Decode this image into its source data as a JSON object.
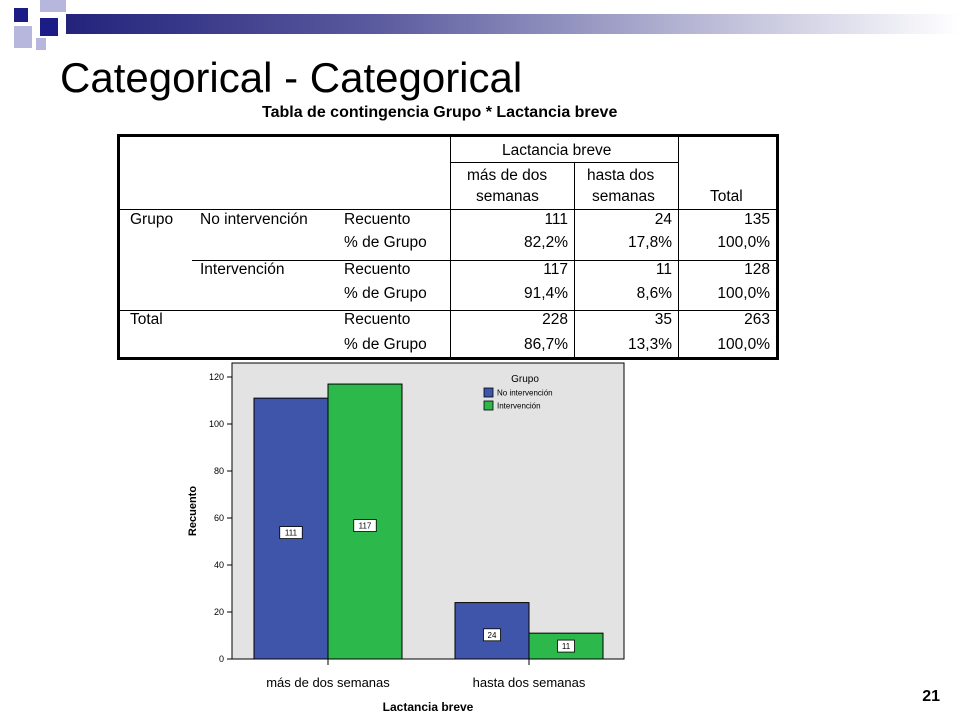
{
  "slide": {
    "title": "Categorical - Categorical",
    "page_number": "21"
  },
  "table": {
    "title": "Tabla de contingencia Grupo * Lactancia breve",
    "col_group_header": "Lactancia breve",
    "col_headers": [
      [
        "más de dos",
        "semanas"
      ],
      [
        "hasta dos",
        "semanas"
      ],
      [
        "Total"
      ]
    ],
    "rows": [
      {
        "group": "Grupo",
        "sub": "No intervención",
        "stat": "Recuento",
        "values": [
          "111",
          "24",
          "135"
        ]
      },
      {
        "group": "",
        "sub": "",
        "stat": "% de Grupo",
        "values": [
          "82,2%",
          "17,8%",
          "100,0%"
        ]
      },
      {
        "group": "",
        "sub": "Intervención",
        "stat": "Recuento",
        "values": [
          "117",
          "11",
          "128"
        ]
      },
      {
        "group": "",
        "sub": "",
        "stat": "% de Grupo",
        "values": [
          "91,4%",
          "8,6%",
          "100,0%"
        ]
      },
      {
        "group": "Total",
        "sub": "",
        "stat": "Recuento",
        "values": [
          "228",
          "35",
          "263"
        ]
      },
      {
        "group": "",
        "sub": "",
        "stat": "% de Grupo",
        "values": [
          "86,7%",
          "13,3%",
          "100,0%"
        ]
      }
    ]
  },
  "chart_data": {
    "type": "bar",
    "categories": [
      "más de dos semanas",
      "hasta dos semanas"
    ],
    "series": [
      {
        "name": "No intervención",
        "values": [
          111,
          24
        ],
        "color": "#3f55a9"
      },
      {
        "name": "Intervención",
        "values": [
          117,
          11
        ],
        "color": "#2db84b"
      }
    ],
    "xlabel": "Lactancia breve",
    "ylabel": "Recuento",
    "ylim": [
      0,
      120
    ],
    "yticks": [
      0,
      20,
      40,
      60,
      80,
      100,
      120
    ],
    "legend_title": "Grupo",
    "legend_position": "top-right",
    "plot_background": "#e3e3e3",
    "data_labels": true,
    "grid": false
  }
}
